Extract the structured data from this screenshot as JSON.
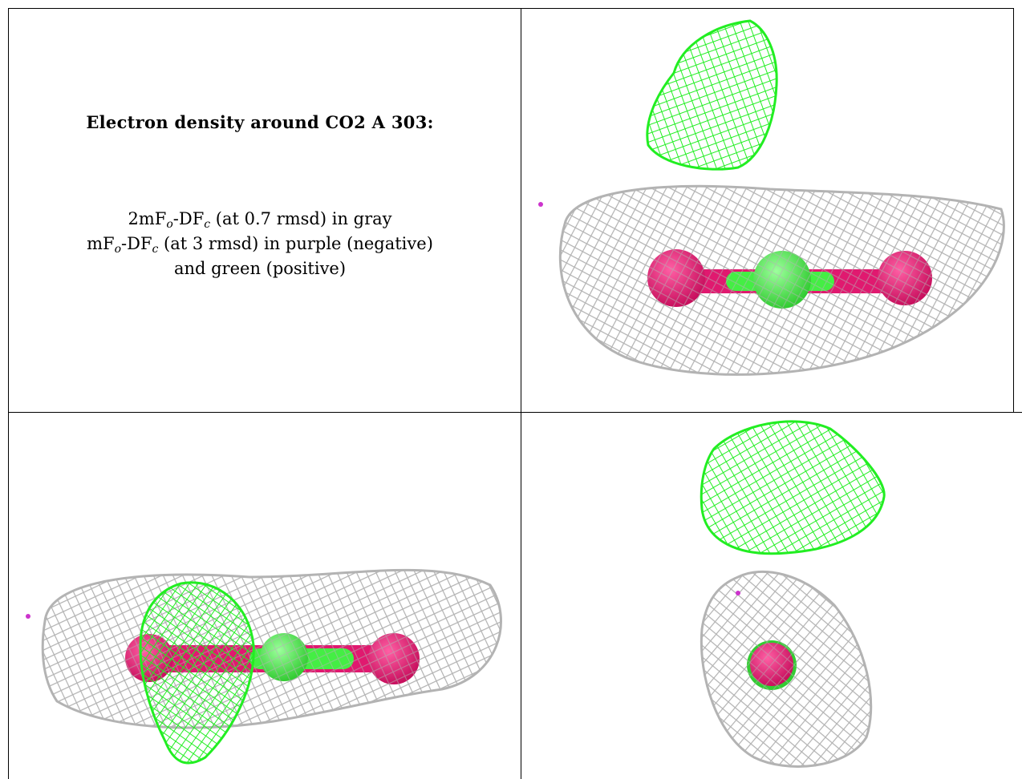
{
  "caption": {
    "title": "Electron density around CO2 A 303:",
    "lines": [
      {
        "pre": "2mF",
        "sub1": "o",
        "mid": "-DF",
        "sub2": "c",
        "post": " (at 0.7 rmsd) in gray"
      },
      {
        "pre": "mF",
        "sub1": "o",
        "mid": "-DF",
        "sub2": "c",
        "post": " (at 3 rmsd) in purple (negative)"
      },
      {
        "text": "and green (positive)"
      }
    ]
  },
  "colors": {
    "map_2fofc_gray": "#b3b3b3",
    "map_fofc_positive_green": "#22ee22",
    "map_fofc_negative_purple": "#cc33cc",
    "carbon_green": "#44ee44",
    "oxygen_pink": "#e0196f",
    "border": "#000000"
  },
  "panels": [
    {
      "view": "top-right",
      "label": ""
    },
    {
      "view": "bottom-left",
      "label": ""
    },
    {
      "view": "bottom-right",
      "label": ""
    }
  ]
}
